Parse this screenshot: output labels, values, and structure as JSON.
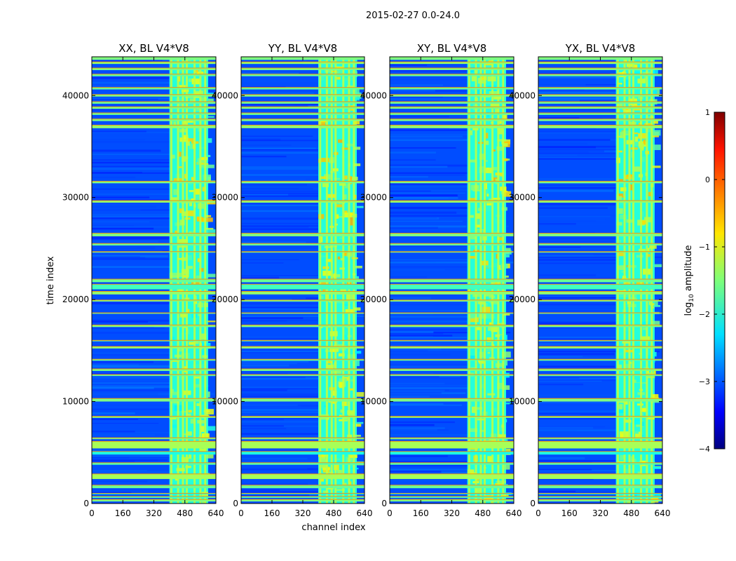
{
  "figure": {
    "suptitle": "2015-02-27 0.0-24.0"
  },
  "chart_data": {
    "type": "heatmap",
    "title": "2015-02-27 0.0-24.0",
    "xlabel": "channel index",
    "ylabel": "time index",
    "xlim": [
      0,
      640
    ],
    "ylim": [
      0,
      43800
    ],
    "x_ticks": [
      0,
      160,
      320,
      480,
      640
    ],
    "y_ticks": [
      0,
      10000,
      20000,
      30000,
      40000
    ],
    "panels": [
      {
        "title": "XX, BL V4*V8"
      },
      {
        "title": "YY, BL V4*V8"
      },
      {
        "title": "XY, BL V4*V8"
      },
      {
        "title": "YX, BL V4*V8"
      }
    ],
    "colorbar": {
      "label": "log10 amplitude",
      "label_main": "log",
      "label_sub": "10",
      "label_rest": " amplitude",
      "range": [
        -4,
        1
      ],
      "ticks": [
        1,
        0,
        -1,
        -2,
        -3,
        -4
      ],
      "tick_labels": [
        "1",
        "0",
        "−1",
        "−2",
        "−3",
        "−4"
      ],
      "colormap": "jet"
    },
    "structure": {
      "background_log_amplitude": -3.0,
      "signal_band_channels": [
        [
          400,
          600
        ]
      ],
      "bright_channel_columns": [
        410,
        445,
        470,
        490,
        530,
        560,
        585
      ],
      "flagged_time_bands": [
        [
          200,
          400
        ],
        [
          550,
          700
        ],
        [
          900,
          1000
        ],
        [
          1500,
          1800
        ],
        [
          2400,
          2900
        ],
        [
          3800,
          4000
        ],
        [
          4800,
          5100
        ],
        [
          5400,
          6100
        ],
        [
          6300,
          6450
        ],
        [
          8400,
          8550
        ],
        [
          10000,
          10300
        ],
        [
          12500,
          12650
        ],
        [
          13000,
          13200
        ],
        [
          14000,
          14150
        ],
        [
          15200,
          15400
        ],
        [
          15900,
          16000
        ],
        [
          17300,
          17500
        ],
        [
          18600,
          18700
        ],
        [
          19800,
          19950
        ],
        [
          20500,
          20800
        ],
        [
          21000,
          21500
        ],
        [
          21700,
          22000
        ],
        [
          24600,
          24700
        ],
        [
          25300,
          25500
        ],
        [
          26200,
          26500
        ],
        [
          29500,
          29700
        ],
        [
          31400,
          31600
        ],
        [
          36800,
          37100
        ],
        [
          37500,
          37700
        ],
        [
          38100,
          38300
        ],
        [
          38700,
          38900
        ],
        [
          39200,
          39400
        ],
        [
          39900,
          40100
        ],
        [
          40600,
          40800
        ],
        [
          41900,
          42100
        ],
        [
          42500,
          42700
        ],
        [
          43100,
          43300
        ],
        [
          43500,
          43800
        ]
      ],
      "band_log_amplitudes": [
        -1.5,
        -1.8,
        -2.0,
        -1.6,
        -1.3,
        -1.7,
        -2.0,
        -1.3,
        -1.5,
        -1.4,
        -1.5,
        -1.6,
        -1.5,
        -1.6,
        -1.4,
        -1.6,
        -1.5,
        -1.6,
        -1.5,
        -1.4,
        -1.8,
        -1.6,
        -1.5,
        -1.6,
        -1.5,
        -1.4,
        -1.5,
        -1.4,
        -1.5,
        -1.6,
        -1.5,
        -1.6,
        -1.5,
        -1.6,
        -1.6,
        -1.5,
        -1.4,
        -1.5
      ]
    }
  }
}
